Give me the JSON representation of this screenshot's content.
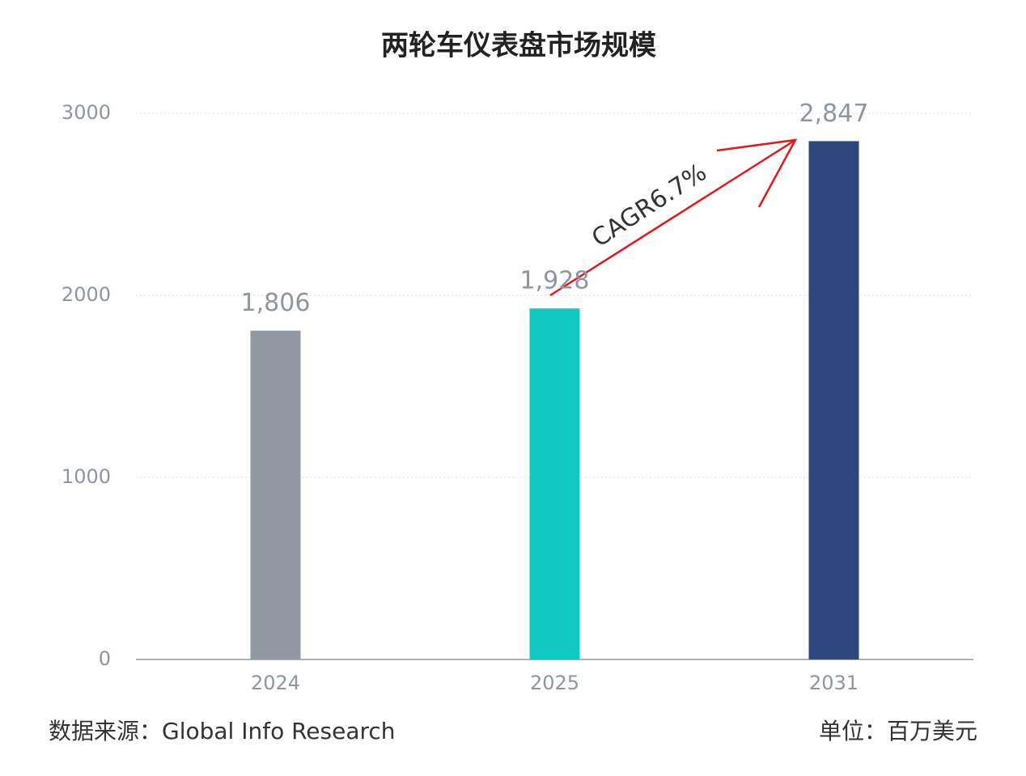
{
  "chart_data": {
    "type": "bar",
    "title": "两轮车仪表盘市场规模",
    "categories": [
      "2024",
      "2025",
      "2031"
    ],
    "values": [
      1806,
      1928,
      2847
    ],
    "value_labels": [
      "1,806",
      "1,928",
      "2,847"
    ],
    "colors": [
      "#9199a3",
      "#10c9c0",
      "#2e477d"
    ],
    "ylim": [
      0,
      3000
    ],
    "yticks": [
      0,
      1000,
      2000,
      3000
    ],
    "grid": true,
    "annotation": "CAGR6.7%",
    "source": "数据来源：Global Info Research",
    "unit": "单位：百万美元"
  }
}
